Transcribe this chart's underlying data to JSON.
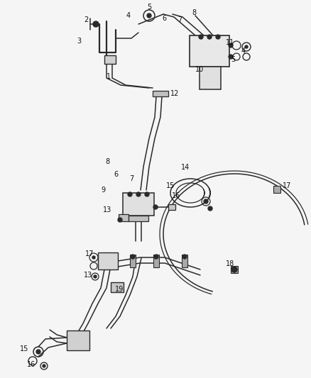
{
  "bg_color": "#f5f5f5",
  "line_color": "#2a2a2a",
  "label_color": "#111111",
  "fig_width": 4.38,
  "fig_height": 5.33,
  "dpi": 100,
  "lw_thick": 1.6,
  "lw_tube": 1.1,
  "lw_thin": 0.8
}
